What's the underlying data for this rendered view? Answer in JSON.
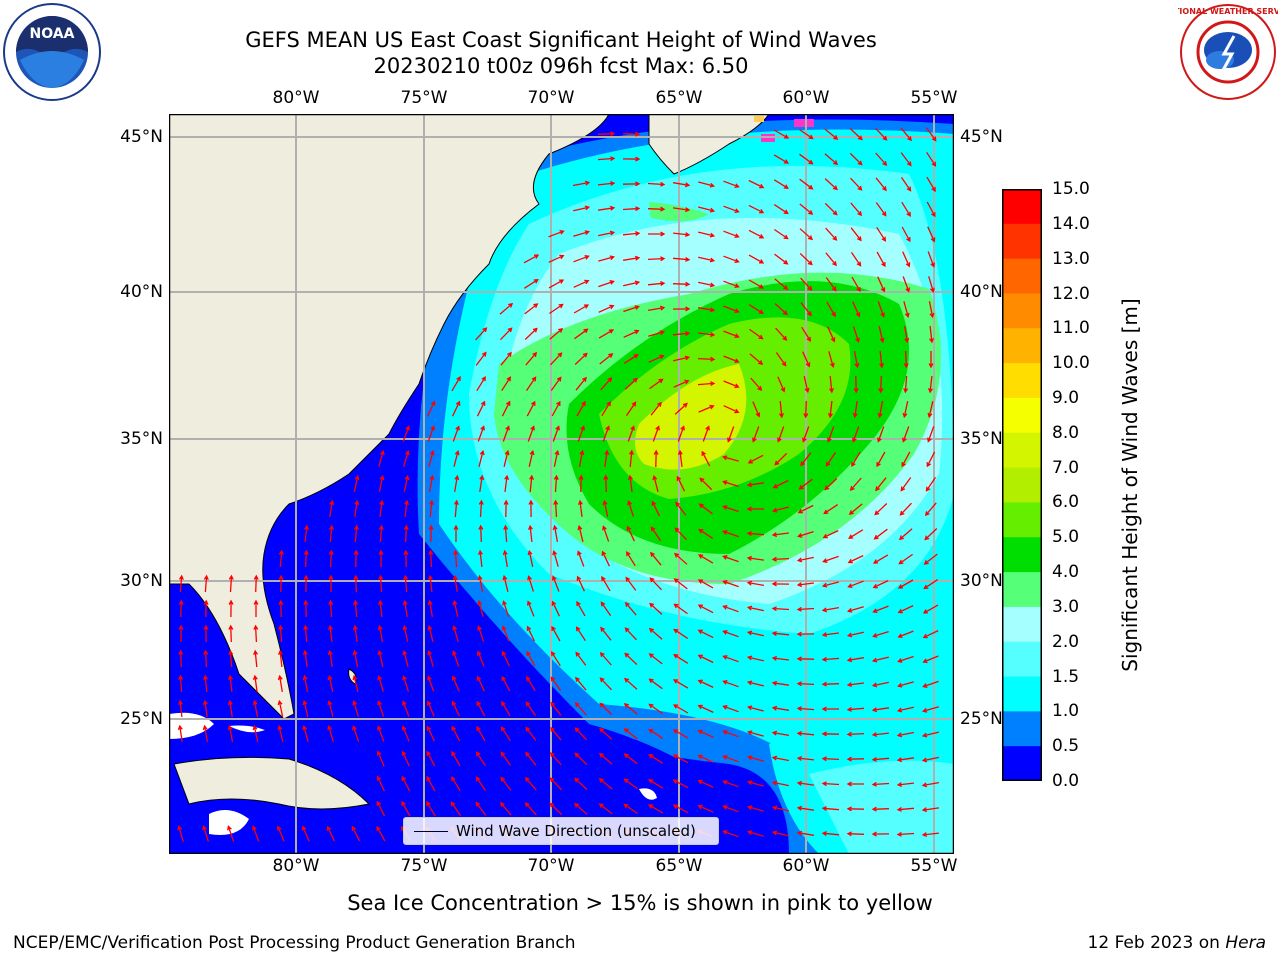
{
  "header": {
    "title_line1": "GEFS MEAN US East Coast Significant Height of Wind Waves",
    "title_line2": "20230210 t00z 096h fcst   Max: 6.50"
  },
  "logos": {
    "left": "noaa-logo",
    "right": "nws-logo",
    "left_text": "NOAA",
    "right_text": "NATIONAL WEATHER SERVICE"
  },
  "map": {
    "lon_ticks": [
      "80°W",
      "75°W",
      "70°W",
      "65°W",
      "60°W",
      "55°W"
    ],
    "lat_ticks": [
      "45°N",
      "40°N",
      "35°N",
      "30°N",
      "25°N"
    ],
    "lon_range": [
      -85,
      -54.2
    ],
    "lat_range": [
      20.6,
      45.8
    ],
    "grid": true,
    "land_color": "#efedde",
    "arrow_color": "#ff0000"
  },
  "legend": {
    "label": "Wind Wave Direction (unscaled)",
    "placement": "lower-center"
  },
  "colorbar": {
    "label": "Significant Height of Wind Waves [m]",
    "ticks": [
      "15.0",
      "14.0",
      "13.0",
      "12.0",
      "11.0",
      "10.0",
      "9.0",
      "8.0",
      "7.0",
      "6.0",
      "5.0",
      "4.0",
      "3.0",
      "2.0",
      "1.5",
      "1.0",
      "0.5",
      "0.0"
    ],
    "colors": [
      "#ff0000",
      "#ff3300",
      "#ff6600",
      "#ff8c00",
      "#ffb300",
      "#ffdd00",
      "#f6ff00",
      "#d4f500",
      "#b2ee00",
      "#66ee00",
      "#00dd00",
      "#55ff77",
      "#a6ffff",
      "#55ffff",
      "#00ffff",
      "#0080ff",
      "#0000ff"
    ]
  },
  "footer": {
    "note": "Sea Ice Concentration > 15% is shown in pink to yellow",
    "left": "NCEP/EMC/Verification Post Processing Product Generation Branch",
    "right_prefix": "12 Feb 2023 on ",
    "right_machine": "Hera"
  }
}
